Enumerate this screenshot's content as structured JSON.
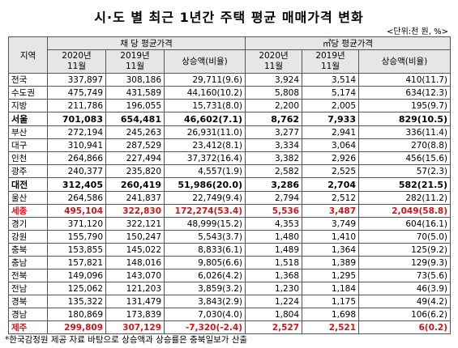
{
  "header": {
    "title": "시·도 별 최근 1년간 주택 평균 매매가격 변화",
    "unit": "<단위:천 원, %>"
  },
  "table": {
    "region_header": "지역",
    "groups": [
      "채 당 평균가격",
      "㎡당 평균가격"
    ],
    "subheaders": [
      "2020년\n11월",
      "2019년\n11월",
      "상승액(비율)",
      "2020년\n11월",
      "2019년\n11월",
      "상승액(비율)"
    ],
    "rows": [
      [
        "전국",
        "337,897",
        "308,186",
        "29,711(9.6)",
        "3,924",
        "3,514",
        "410(11.7)"
      ],
      [
        "수도권",
        "475,749",
        "431,589",
        "44,160(10.2)",
        "5,808",
        "5,174",
        "634(12.3)"
      ],
      [
        "지방",
        "211,786",
        "196,055",
        "15,731(8.0)",
        "2,200",
        "2,005",
        "195(9.7)"
      ],
      [
        "서울",
        "701,083",
        "654,481",
        "46,602(7.1)",
        "8,762",
        "7,933",
        "829(10.5)"
      ],
      [
        "부산",
        "272,194",
        "245,263",
        "26,931(11.0)",
        "3,277",
        "2,941",
        "336(11.4)"
      ],
      [
        "대구",
        "310,941",
        "287,529",
        "23,412(8.1)",
        "3,334",
        "3,064",
        "270(8.8)"
      ],
      [
        "인천",
        "264,866",
        "227,494",
        "37,372(16.4)",
        "3,382",
        "2,926",
        "456(15.6)"
      ],
      [
        "광주",
        "240,377",
        "235,820",
        "4,557(1.9)",
        "2,582",
        "2,525",
        "57(2.3)"
      ],
      [
        "대전",
        "312,405",
        "260,419",
        "51,986(20.0)",
        "3,286",
        "2,704",
        "582(21.5)"
      ],
      [
        "울산",
        "264,586",
        "241,837",
        "22,749(9.4)",
        "2,794",
        "2,512",
        "282(11.2)"
      ],
      [
        "세종",
        "495,104",
        "322,830",
        "172,274(53.4)",
        "5,536",
        "3,487",
        "2,049(58.8)"
      ],
      [
        "경기",
        "371,120",
        "322,121",
        "48,999(15.2)",
        "4,353",
        "3,749",
        "604(16.1)"
      ],
      [
        "강원",
        "155,790",
        "150,247",
        "5,543(3.7)",
        "1,480",
        "1,410",
        "70(5.0)"
      ],
      [
        "충북",
        "153,855",
        "145,022",
        "8,833(6.1)",
        "1,489",
        "1,364",
        "125(9.2)"
      ],
      [
        "충남",
        "157,821",
        "148,016",
        "9,805(6.6)",
        "1,518",
        "1,389",
        "129(9.3)"
      ],
      [
        "전북",
        "149,096",
        "143,070",
        "6,026(4.2)",
        "1,368",
        "1,295",
        "73(5.6)"
      ],
      [
        "전남",
        "125,062",
        "121,203",
        "3,859(3.2)",
        "1,230",
        "1,184",
        "46(3.9)"
      ],
      [
        "경북",
        "135,322",
        "131,479",
        "3,843(2.9)",
        "1,224",
        "1,175",
        "49(4.2)"
      ],
      [
        "경남",
        "180,869",
        "173,839",
        "7,030(4.0)",
        "1,804",
        "1,698",
        "106(6.2)"
      ],
      [
        "제주",
        "299,809",
        "307,129",
        "-7,320(-2.4)",
        "2,527",
        "2,521",
        "6(0.2)"
      ]
    ]
  },
  "footer": "*한국감정원 제공 자료 바탕으로 상승액과 상승률은 충북일보가 산출"
}
